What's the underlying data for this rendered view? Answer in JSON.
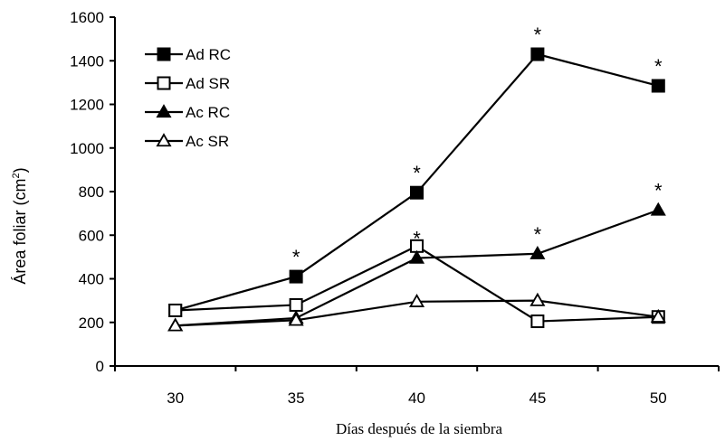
{
  "chart_data": {
    "type": "line",
    "xlabel": "Días después de la siembra",
    "ylabel_main": "Área foliar (cm",
    "ylabel_sup": "2",
    "ylabel_end": ")",
    "x": [
      30,
      35,
      40,
      45,
      50
    ],
    "x_ticks": [
      "30",
      "35",
      "40",
      "45",
      "50"
    ],
    "ylim": [
      0,
      1600
    ],
    "y_ticks": [
      "0",
      "200",
      "400",
      "600",
      "800",
      "1000",
      "1200",
      "1400",
      "1600"
    ],
    "grid": false,
    "legend_position": "top-left",
    "series": [
      {
        "name": "Ad RC",
        "marker": "filled-square",
        "values": [
          255,
          410,
          795,
          1430,
          1285
        ]
      },
      {
        "name": "Ad SR",
        "marker": "open-square",
        "values": [
          255,
          280,
          550,
          205,
          225
        ]
      },
      {
        "name": "Ac RC",
        "marker": "filled-triangle",
        "values": [
          185,
          220,
          495,
          515,
          715
        ]
      },
      {
        "name": "Ac SR",
        "marker": "open-triangle",
        "values": [
          185,
          210,
          295,
          300,
          225
        ]
      }
    ],
    "annotations": [
      {
        "text": "*",
        "x": 35,
        "y": 410
      },
      {
        "text": "*",
        "x": 40,
        "y": 795
      },
      {
        "text": "*",
        "x": 40,
        "y": 495
      },
      {
        "text": "*",
        "x": 45,
        "y": 1430
      },
      {
        "text": "*",
        "x": 45,
        "y": 515
      },
      {
        "text": "*",
        "x": 50,
        "y": 1285
      },
      {
        "text": "*",
        "x": 50,
        "y": 715
      }
    ]
  }
}
